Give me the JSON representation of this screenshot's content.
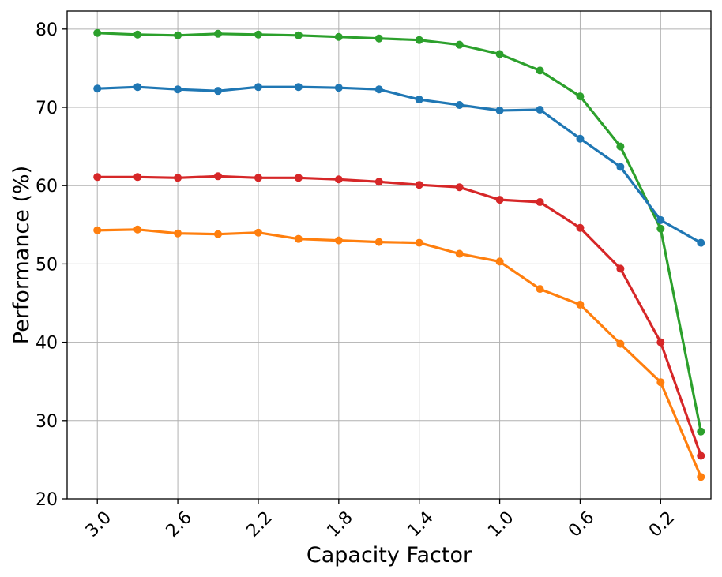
{
  "chart_data": {
    "type": "line",
    "title": "",
    "xlabel": "Capacity Factor",
    "ylabel": "Performance (%)",
    "x": [
      3.0,
      2.8,
      2.6,
      2.4,
      2.2,
      2.0,
      1.8,
      1.6,
      1.4,
      1.2,
      1.0,
      0.8,
      0.6,
      0.4,
      0.2,
      0.0
    ],
    "xlim": [
      3.15,
      -0.05
    ],
    "xticks": [
      3.0,
      2.6,
      2.2,
      1.8,
      1.4,
      1.0,
      0.6,
      0.2
    ],
    "xtick_labels": [
      "3.0",
      "2.6",
      "2.2",
      "1.8",
      "1.4",
      "1.0",
      "0.6",
      "0.2"
    ],
    "ylim": [
      20,
      82.3
    ],
    "yticks": [
      20,
      30,
      40,
      50,
      60,
      70,
      80
    ],
    "ytick_labels": [
      "20",
      "30",
      "40",
      "50",
      "60",
      "70",
      "80"
    ],
    "grid": true,
    "series": [
      {
        "name": "green",
        "color": "#2ca02c",
        "values": [
          79.5,
          79.3,
          79.2,
          79.4,
          79.3,
          79.2,
          79.0,
          78.8,
          78.6,
          78.0,
          76.8,
          74.7,
          71.4,
          65.0,
          54.5,
          28.6
        ]
      },
      {
        "name": "blue",
        "color": "#1f77b4",
        "values": [
          72.4,
          72.6,
          72.3,
          72.1,
          72.6,
          72.6,
          72.5,
          72.3,
          71.0,
          70.3,
          69.6,
          69.7,
          66.0,
          62.4,
          55.6,
          52.7
        ]
      },
      {
        "name": "red",
        "color": "#d62728",
        "values": [
          61.1,
          61.1,
          61.0,
          61.2,
          61.0,
          61.0,
          60.8,
          60.5,
          60.1,
          59.8,
          58.2,
          57.9,
          54.6,
          49.4,
          40.0,
          25.5
        ]
      },
      {
        "name": "orange",
        "color": "#ff7f0e",
        "values": [
          54.3,
          54.4,
          53.9,
          53.8,
          54.0,
          53.2,
          53.0,
          52.8,
          52.7,
          51.3,
          50.3,
          46.8,
          44.8,
          39.8,
          34.9,
          22.8
        ]
      }
    ]
  }
}
